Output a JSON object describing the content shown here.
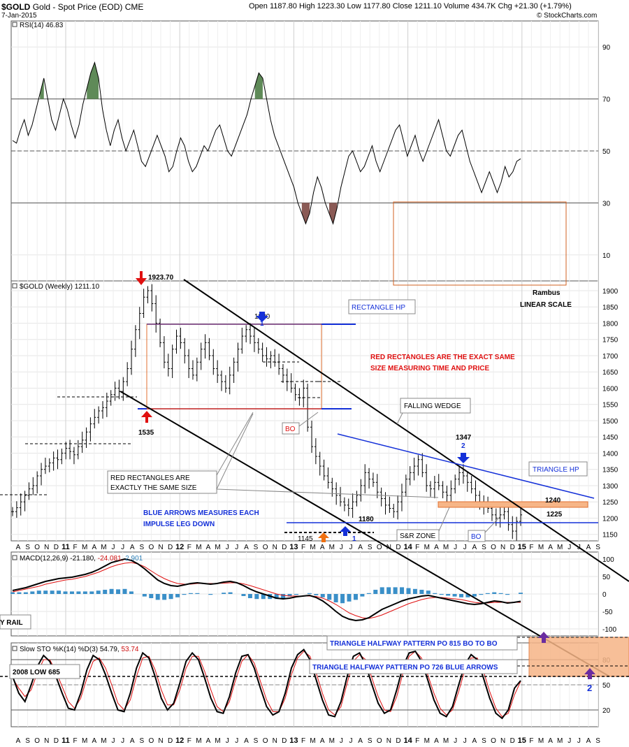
{
  "header": {
    "symbol": "$GOLD",
    "name": "Gold - Spot Price (EOD)",
    "exchange": "CME",
    "date": "7-Jan-2015",
    "ohlc": "Open 1187.80  High 1223.30  Low 1177.80  Close 1211.10  Volume 434.7K  Chg +21.30 (+1.79%)",
    "copyright": "© StockCharts.com"
  },
  "chart_data": [
    {
      "panel": "rsi",
      "type": "line",
      "title": "RSI(14) 46.83",
      "ylim": [
        0,
        100
      ],
      "yticks": [
        10,
        30,
        50,
        70,
        90
      ],
      "reference_lines": [
        30,
        50,
        70
      ],
      "values": [
        54,
        53,
        58,
        62,
        56,
        60,
        66,
        72,
        78,
        70,
        62,
        58,
        64,
        70,
        66,
        60,
        55,
        60,
        68,
        74,
        80,
        84,
        78,
        66,
        58,
        52,
        58,
        62,
        55,
        50,
        54,
        58,
        52,
        46,
        44,
        48,
        52,
        56,
        52,
        48,
        42,
        44,
        50,
        55,
        52,
        46,
        42,
        44,
        48,
        52,
        50,
        54,
        58,
        60,
        55,
        50,
        48,
        52,
        56,
        60,
        64,
        70,
        75,
        80,
        78,
        70,
        62,
        56,
        52,
        48,
        44,
        40,
        36,
        30,
        26,
        22,
        26,
        34,
        40,
        36,
        30,
        26,
        22,
        28,
        36,
        42,
        48,
        50,
        46,
        42,
        44,
        48,
        52,
        46,
        42,
        46,
        50,
        54,
        58,
        60,
        54,
        48,
        52,
        56,
        50,
        46,
        50,
        54,
        58,
        62,
        56,
        50,
        48,
        52,
        56,
        58,
        52,
        46,
        42,
        38,
        34,
        38,
        42,
        38,
        34,
        38,
        44,
        40,
        42,
        46,
        47
      ]
    },
    {
      "panel": "price",
      "type": "ohlc",
      "title": "$GOLD (Weekly) 1211.10",
      "ylim": [
        1130,
        1930
      ],
      "yticks": [
        1150,
        1200,
        1250,
        1300,
        1350,
        1400,
        1450,
        1500,
        1550,
        1600,
        1650,
        1700,
        1750,
        1800,
        1850,
        1900
      ],
      "close": [
        1220,
        1232,
        1250,
        1270,
        1290,
        1300,
        1330,
        1350,
        1360,
        1370,
        1385,
        1380,
        1400,
        1415,
        1405,
        1395,
        1420,
        1440,
        1465,
        1490,
        1510,
        1530,
        1540,
        1560,
        1580,
        1600,
        1590,
        1620,
        1660,
        1720,
        1780,
        1830,
        1880,
        1900,
        1860,
        1800,
        1740,
        1680,
        1660,
        1720,
        1760,
        1740,
        1700,
        1660,
        1640,
        1680,
        1720,
        1740,
        1700,
        1660,
        1640,
        1620,
        1600,
        1640,
        1680,
        1720,
        1760,
        1780,
        1760,
        1740,
        1720,
        1700,
        1690,
        1700,
        1680,
        1660,
        1640,
        1620,
        1600,
        1580,
        1570,
        1600,
        1480,
        1420,
        1390,
        1360,
        1330,
        1310,
        1290,
        1270,
        1250,
        1240,
        1230,
        1250,
        1270,
        1300,
        1340,
        1320,
        1310,
        1280,
        1260,
        1240,
        1230,
        1220,
        1250,
        1280,
        1320,
        1340,
        1360,
        1380,
        1340,
        1300,
        1290,
        1310,
        1300,
        1280,
        1270,
        1290,
        1320,
        1340,
        1330,
        1310,
        1290,
        1270,
        1250,
        1240,
        1230,
        1210,
        1200,
        1210,
        1220,
        1180,
        1160,
        1190,
        1210
      ]
    },
    {
      "panel": "macd",
      "type": "line",
      "title": "MACD(12,26,9) -21.180, -24.081, 2.901",
      "ylim": [
        -120,
        120
      ],
      "yticks": [
        -100,
        -50,
        0,
        50,
        100
      ],
      "series": [
        {
          "name": "MACD",
          "values": [
            10,
            14,
            18,
            24,
            30,
            36,
            40,
            44,
            46,
            48,
            52,
            56,
            62,
            70,
            80,
            90,
            95,
            100,
            96,
            86,
            72,
            56,
            40,
            30,
            24,
            22,
            26,
            30,
            32,
            30,
            28,
            30,
            34,
            36,
            32,
            24,
            14,
            6,
            0,
            -6,
            -12,
            -14,
            -12,
            -8,
            -6,
            -4,
            -10,
            -20,
            -34,
            -50,
            -64,
            -72,
            -76,
            -74,
            -68,
            -56,
            -44,
            -36,
            -28,
            -20,
            -14,
            -10,
            -6,
            -4,
            -8,
            -12,
            -16,
            -20,
            -24,
            -28,
            -30,
            -28,
            -24,
            -20,
            -22,
            -26,
            -24,
            -21
          ]
        },
        {
          "name": "Signal",
          "values": [
            6,
            10,
            14,
            18,
            22,
            28,
            32,
            36,
            40,
            42,
            46,
            50,
            56,
            62,
            70,
            78,
            84,
            88,
            90,
            86,
            78,
            66,
            54,
            44,
            36,
            30,
            28,
            28,
            30,
            30,
            30,
            30,
            31,
            32,
            32,
            29,
            24,
            18,
            12,
            6,
            0,
            -4,
            -6,
            -6,
            -6,
            -6,
            -7,
            -12,
            -20,
            -30,
            -42,
            -54,
            -62,
            -68,
            -70,
            -66,
            -60,
            -52,
            -44,
            -36,
            -28,
            -22,
            -16,
            -12,
            -10,
            -10,
            -12,
            -14,
            -16,
            -20,
            -24,
            -26,
            -26,
            -24,
            -24,
            -24,
            -24,
            -24
          ]
        }
      ]
    },
    {
      "panel": "stochastic",
      "type": "line",
      "title": "Slow STO %K(14) %D(3) 54.79, 53.74",
      "ylim": [
        0,
        100
      ],
      "yticks": [
        20,
        50,
        80
      ],
      "series": [
        {
          "name": "%K",
          "values": [
            60,
            40,
            30,
            50,
            72,
            85,
            78,
            60,
            40,
            22,
            20,
            40,
            68,
            85,
            80,
            62,
            40,
            20,
            18,
            40,
            70,
            88,
            82,
            60,
            34,
            20,
            28,
            52,
            78,
            88,
            80,
            58,
            34,
            18,
            16,
            36,
            64,
            84,
            86,
            70,
            46,
            24,
            14,
            18,
            40,
            70,
            86,
            92,
            80,
            56,
            32,
            14,
            12,
            30,
            60,
            84,
            88,
            74,
            50,
            28,
            16,
            20,
            44,
            72,
            88,
            90,
            78,
            56,
            32,
            16,
            12,
            24,
            50,
            74,
            86,
            80,
            58,
            34,
            16,
            10,
            20,
            46,
            55
          ]
        },
        {
          "name": "%D",
          "values": [
            58,
            46,
            36,
            44,
            64,
            80,
            80,
            66,
            48,
            30,
            22,
            34,
            58,
            78,
            82,
            70,
            50,
            28,
            20,
            32,
            60,
            82,
            84,
            68,
            44,
            26,
            26,
            44,
            70,
            84,
            84,
            66,
            44,
            24,
            18,
            30,
            56,
            78,
            86,
            76,
            54,
            32,
            18,
            18,
            34,
            62,
            82,
            90,
            84,
            64,
            40,
            20,
            14,
            24,
            52,
            78,
            86,
            80,
            58,
            36,
            20,
            18,
            36,
            64,
            84,
            90,
            82,
            62,
            40,
            22,
            14,
            20,
            42,
            68,
            82,
            82,
            66,
            42,
            22,
            12,
            16,
            38,
            54
          ]
        }
      ]
    }
  ],
  "panel_labels": {
    "rsi": "RSI(14) 46.83",
    "price": "$GOLD (Weekly) 1211.10",
    "macd_name": "MACD(12,26,9)",
    "macd_v1": "-21.180,",
    "macd_v2": "-24.081,",
    "macd_v3": "2.901",
    "sto_name": "Slow STO %K(14) %D(3)",
    "sto_v1": "54.79,",
    "sto_v2": "53.74"
  },
  "x_axis": [
    "A",
    "S",
    "O",
    "N",
    "D",
    "11",
    "F",
    "M",
    "A",
    "M",
    "J",
    "J",
    "A",
    "S",
    "O",
    "N",
    "D",
    "12",
    "F",
    "M",
    "A",
    "M",
    "J",
    "J",
    "A",
    "S",
    "O",
    "N",
    "D",
    "13",
    "F",
    "M",
    "A",
    "M",
    "J",
    "J",
    "A",
    "S",
    "O",
    "N",
    "D",
    "14",
    "F",
    "M",
    "A",
    "M",
    "J",
    "J",
    "A",
    "S",
    "O",
    "N",
    "D",
    "15",
    "F",
    "M",
    "A",
    "M",
    "J",
    "J",
    "A",
    "S"
  ],
  "annotations": {
    "high_label": "1923.70",
    "low_1535": "1535",
    "label_1800": "1800",
    "label_1347": "1347",
    "label_1180": "1180",
    "label_1145": "1145",
    "label_1240": "1240",
    "label_1225": "1225",
    "arrow1_top": "1",
    "arrow2_top": "2",
    "arrow1_bottom": "1",
    "arrow2_bottom": "2",
    "rectangle_hp": "RECTANGLE HP",
    "triangle_hp": "TRIANGLE HP",
    "falling_wedge": "FALLING WEDGE",
    "red_rect_note_1": "RED RECTANGLES ARE THE EXACT SAME",
    "red_rect_note_2": "SIZE MEASURING TIME AND PRICE",
    "same_size_1": "RED RECTANGLES ARE",
    "same_size_2": "EXACTLY THE SAME SIZE",
    "blue_arrows_1": "BLUE ARROWS MEASURES EACH",
    "blue_arrows_2": "IMPULSE LEG DOWN",
    "bo_1": "BO",
    "bo_2": "BO",
    "sr_zone": "S&R ZONE",
    "rambus": "Rambus",
    "linear_scale": "LINEAR SCALE",
    "rail": "Y RAIL",
    "low_2008": "2008 LOW 685",
    "tri_po_815": "TRIANGLE HALFWAY PATTERN PO 815 BO TO BO",
    "tri_po_726": "TRIANGLE HALFWAY PATTERN PO 726 BLUE ARROWS"
  },
  "colors": {
    "rectangle": "#e07030",
    "rectangle_top": "#6a2c70",
    "blue": "#1430d8",
    "red": "#e01010",
    "orange_zone": "#f6b587",
    "histogram": "#3a8fc8"
  }
}
